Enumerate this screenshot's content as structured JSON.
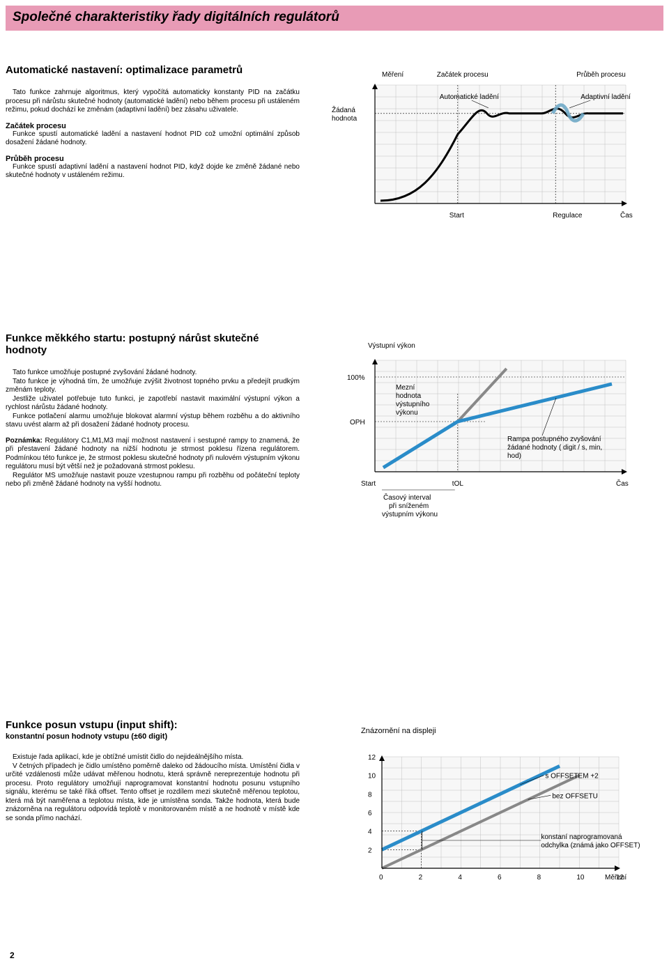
{
  "page": {
    "number": "2",
    "header": "Společné charakteristiky řady digitálních regulátorů"
  },
  "section1": {
    "title": "Automatické nastavení: optimalizace parametrů",
    "intro": "Tato funkce zahrnuje algoritmus, který vypočítá automaticky konstanty PID na začátku procesu při nárůstu skutečné hodnoty (automatické ladění) nebo během procesu při ustáleném režimu, pokud dochází ke změnám (adaptivní ladění) bez zásahu uživatele.",
    "sub1_title": "Začátek procesu",
    "sub1_body": "Funkce spustí automatické ladění a nastavení hodnot PID což umožní optimální způsob dosažení žádané hodnoty.",
    "sub2_title": "Průběh procesu",
    "sub2_body": "Funkce spustí adaptivní ladění a nastavení hodnot PID, když dojde ke změně žádané nebo skutečné hodnoty v ustáleném režimu.",
    "chart": {
      "label_measure": "Měření",
      "label_zacatek": "Začátek procesu",
      "label_prubeh": "Průběh procesu",
      "label_auto": "Automatické ladění",
      "label_adapt": "Adaptivní ladění",
      "label_zadana1": "Žádaná",
      "label_zadana2": "hodnota",
      "label_start": "Start",
      "label_regulace": "Regulace",
      "label_cas": "Čas",
      "bg": "#f7f7f7",
      "grid_color": "#c0c0c0",
      "curve_color": "#000000",
      "wave_color": "#6fa8c7",
      "font": 10
    }
  },
  "section2": {
    "title": "Funkce měkkého startu: postupný nárůst skutečné hodnoty",
    "p1": "Tato funkce umožňuje postupné zvyšování žádané hodnoty.",
    "p2": "Tato funkce je výhodná tím, že umožňuje zvýšit životnost topného prvku a předejít prudkým změnám teploty.",
    "p3": "Jestliže uživatel potřebuje tuto funkci, je zapotřebí nastavit maximální výstupní výkon a rychlost nárůstu žádané hodnoty.",
    "p4": "Funkce potlačení alarmu umožňuje blokovat alarmní výstup během rozběhu a do aktivního stavu uvést alarm až při dosažení žádané hodnoty procesu.",
    "note_label": "Poznámka:",
    "note_body": " Regulátory C1,M1,M3 mají možnost nastavení i sestupné rampy to znamená, že při přestavení žádané hodnoty  na nižší hodnotu je strmost poklesu řízena regulátorem. Podmínkou této funkce je, že strmost poklesu skutečné hodnoty při nulovém výstupním výkonu regulátoru musí být větší než je požadovaná strmost poklesu.",
    "note2": "Regulátor MS umožňuje nastavit pouze vzestupnou rampu při rozběhu od počáteční teploty nebo při změně žádané hodnoty na vyšší hodnotu.",
    "chart": {
      "ylabel": "Výstupní výkon",
      "lab100": "100%",
      "labOPH": "OPH",
      "mezni1": "Mezní",
      "mezni2": "hodnota",
      "mezni3": "výstupního",
      "mezni4": "výkonu",
      "rampa1": "Rampa postupného zvyšování",
      "rampa2": "žádané hodnoty ( digit / s, min,",
      "rampa3": "hod)",
      "start": "Start",
      "tol": "tOL",
      "casint1": "Časový interval",
      "casint2": "při sníženém",
      "casint3": "výstupním výkonu",
      "cas": "Čas",
      "bg": "#f7f7f7",
      "grid_color": "#c0c0c0",
      "line_blue": "#2a8cc9",
      "line_grey": "#888888",
      "font": 10
    }
  },
  "section3": {
    "title": "Funkce posun vstupu (input shift):",
    "subtitle": "konstantní posun hodnoty vstupu (±60 digit)",
    "p1": "Existuje řada aplikací, kde je obtížné umístit čidlo do nejideálnějšího místa.",
    "p2": "V četných případech je čidlo umístěno poměrně daleko od žádoucího místa. Umístění čidla v určité vzdálenosti může udávat měřenou hodnotu, která správně nereprezentuje hodnotu při procesu. Proto regulátory umožňují naprogramovat konstantní hodnotu posunu vstupního signálu, kterému se také říká offset. Tento offset je rozdílem mezi skutečně měřenou teplotou, která má být naměřena a teplotou místa, kde je umístěna sonda. Takže hodnota, která bude znázorněna na regulátoru odpovídá teplotě v monitorovaném místě a ne hodnotě v místě kde se sonda přímo nachází.",
    "chart": {
      "title": "Znázornění na displeji",
      "yticks": [
        "12",
        "10",
        "8",
        "6",
        "4",
        "2"
      ],
      "xticks": [
        "0",
        "2",
        "4",
        "6",
        "8",
        "10",
        "12"
      ],
      "lab_offset": "s OFFSETEM +2",
      "lab_bezoffset": "bez OFFSETU",
      "lab_konst1": "konstaní naprogramovaná",
      "lab_konst2": "odchylka (známá jako OFFSET)",
      "lab_mereni": "Měření",
      "bg": "#f7f7f7",
      "grid_color": "#c0c0c0",
      "line_blue": "#2a8cc9",
      "line_grey": "#888888",
      "font": 10
    }
  }
}
